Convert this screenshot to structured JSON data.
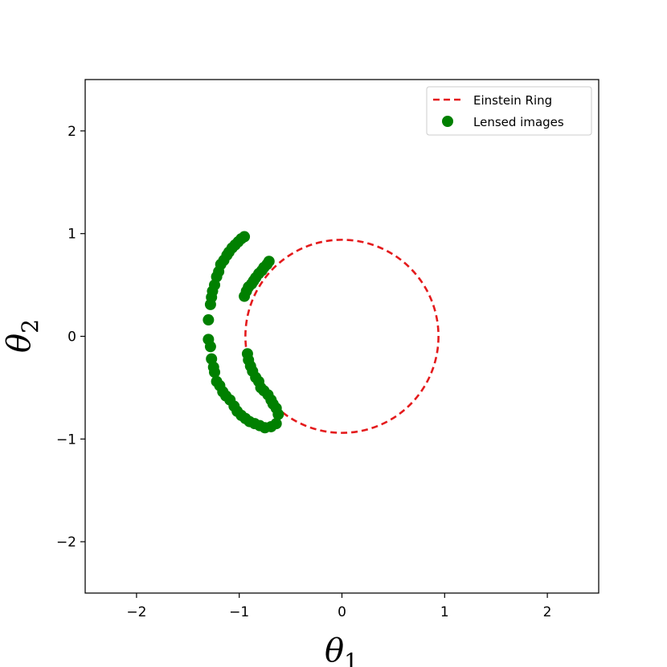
{
  "chart_data": {
    "type": "scatter",
    "title": "",
    "xlabel": "θ",
    "xlabel_sub": "1",
    "ylabel": "θ",
    "ylabel_sub": "2",
    "xlim": [
      -2.5,
      2.5
    ],
    "ylim": [
      -2.5,
      2.5
    ],
    "xticks": [
      -2,
      -1,
      0,
      1,
      2
    ],
    "yticks": [
      -2,
      -1,
      0,
      1,
      2
    ],
    "xtick_labels": [
      "−2",
      "−1",
      "0",
      "1",
      "2"
    ],
    "ytick_labels": [
      "−2",
      "−1",
      "0",
      "1",
      "2"
    ],
    "grid": false,
    "legend_position": "top-right",
    "series": [
      {
        "name": "Einstein Ring",
        "kind": "circle",
        "center": [
          0,
          0
        ],
        "radius": 0.94,
        "color": "#e41a1c",
        "style": "dashed"
      },
      {
        "name": "Lensed images",
        "kind": "scatter",
        "color": "#008000",
        "points": [
          [
            -0.95,
            0.97
          ],
          [
            -0.98,
            0.95
          ],
          [
            -1.01,
            0.92
          ],
          [
            -1.04,
            0.89
          ],
          [
            -1.07,
            0.86
          ],
          [
            -1.1,
            0.82
          ],
          [
            -1.12,
            0.79
          ],
          [
            -1.15,
            0.74
          ],
          [
            -1.18,
            0.7
          ],
          [
            -1.2,
            0.63
          ],
          [
            -1.22,
            0.58
          ],
          [
            -1.24,
            0.5
          ],
          [
            -1.26,
            0.44
          ],
          [
            -1.27,
            0.38
          ],
          [
            -1.28,
            0.31
          ],
          [
            -1.3,
            0.16
          ],
          [
            -1.3,
            -0.03
          ],
          [
            -1.28,
            -0.1
          ],
          [
            -1.27,
            -0.22
          ],
          [
            -1.25,
            -0.3
          ],
          [
            -1.24,
            -0.35
          ],
          [
            -1.22,
            -0.44
          ],
          [
            -1.19,
            -0.48
          ],
          [
            -1.16,
            -0.54
          ],
          [
            -1.13,
            -0.58
          ],
          [
            -1.09,
            -0.62
          ],
          [
            -1.05,
            -0.68
          ],
          [
            -1.02,
            -0.73
          ],
          [
            -0.98,
            -0.77
          ],
          [
            -0.94,
            -0.8
          ],
          [
            -0.9,
            -0.83
          ],
          [
            -0.85,
            -0.85
          ],
          [
            -0.8,
            -0.87
          ],
          [
            -0.75,
            -0.89
          ],
          [
            -0.69,
            -0.88
          ],
          [
            -0.64,
            -0.85
          ],
          [
            -0.62,
            -0.76
          ],
          [
            -0.64,
            -0.7
          ],
          [
            -0.67,
            -0.66
          ],
          [
            -0.69,
            -0.62
          ],
          [
            -0.72,
            -0.57
          ],
          [
            -0.76,
            -0.53
          ],
          [
            -0.79,
            -0.5
          ],
          [
            -0.81,
            -0.44
          ],
          [
            -0.84,
            -0.4
          ],
          [
            -0.87,
            -0.34
          ],
          [
            -0.89,
            -0.29
          ],
          [
            -0.91,
            -0.23
          ],
          [
            -0.92,
            -0.17
          ],
          [
            -0.95,
            0.39
          ],
          [
            -0.93,
            0.44
          ],
          [
            -0.91,
            0.48
          ],
          [
            -0.88,
            0.51
          ],
          [
            -0.86,
            0.54
          ],
          [
            -0.84,
            0.57
          ],
          [
            -0.81,
            0.61
          ],
          [
            -0.78,
            0.64
          ],
          [
            -0.76,
            0.67
          ],
          [
            -0.73,
            0.7
          ],
          [
            -0.71,
            0.73
          ]
        ]
      }
    ]
  }
}
